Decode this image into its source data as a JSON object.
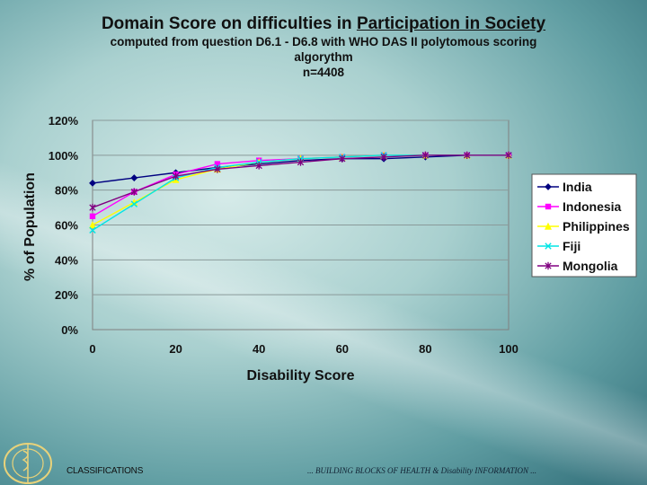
{
  "slide": {
    "title_prefix": "Domain Score on difficulties in ",
    "title_underlined": "Participation in Society",
    "subtitle_line1": "computed from question D6.1 - D6.8 with WHO DAS II polytomous scoring",
    "subtitle_line2": "algorythm",
    "subtitle_line3": "n=4408"
  },
  "footer": {
    "left_text": "CLASSIFICATIONS",
    "right_text": "... BUILDING BLOCKS OF HEALTH  & Disability INFORMATION ..."
  },
  "chart_data": {
    "type": "line",
    "title": "",
    "xlabel": "Disability Score",
    "ylabel": "% of Population",
    "xlim": [
      0,
      100
    ],
    "ylim": [
      0,
      120
    ],
    "x_ticks": [
      0,
      20,
      40,
      60,
      80,
      100
    ],
    "y_ticks": [
      0,
      20,
      40,
      60,
      80,
      100,
      120
    ],
    "y_tick_labels": [
      "0%",
      "20%",
      "40%",
      "60%",
      "80%",
      "100%",
      "120%"
    ],
    "grid": "horizontal",
    "legend_position": "right",
    "series": [
      {
        "name": "India",
        "color": "#000080",
        "marker": "diamond",
        "x": [
          0,
          10,
          20,
          30,
          40,
          50,
          60,
          70,
          80,
          90,
          100
        ],
        "y": [
          84,
          87,
          90,
          93,
          95,
          97,
          98,
          98,
          99,
          100,
          100
        ]
      },
      {
        "name": "Indonesia",
        "color": "#ff00ff",
        "marker": "square",
        "x": [
          0,
          10,
          20,
          30,
          40,
          50,
          60,
          70,
          80,
          90,
          100
        ],
        "y": [
          65,
          79,
          89,
          95,
          97,
          98,
          99,
          100,
          100,
          100,
          100
        ]
      },
      {
        "name": "Philippines",
        "color": "#ffff00",
        "marker": "triangle",
        "x": [
          0,
          10,
          20,
          30,
          40,
          50,
          60,
          70,
          80,
          90,
          100
        ],
        "y": [
          60,
          73,
          86,
          92,
          96,
          98,
          99,
          100,
          100,
          100,
          100
        ]
      },
      {
        "name": "Fiji",
        "color": "#00e5e5",
        "marker": "x",
        "x": [
          0,
          10,
          20,
          30,
          40,
          50,
          60,
          70,
          80,
          90,
          100
        ],
        "y": [
          57,
          72,
          87,
          93,
          96,
          98,
          99,
          100,
          100,
          100,
          100
        ]
      },
      {
        "name": "Mongolia",
        "color": "#800080",
        "marker": "star",
        "x": [
          0,
          10,
          20,
          30,
          40,
          50,
          60,
          70,
          80,
          90,
          100
        ],
        "y": [
          70,
          79,
          88,
          92,
          94,
          96,
          98,
          99,
          100,
          100,
          100
        ]
      }
    ]
  }
}
